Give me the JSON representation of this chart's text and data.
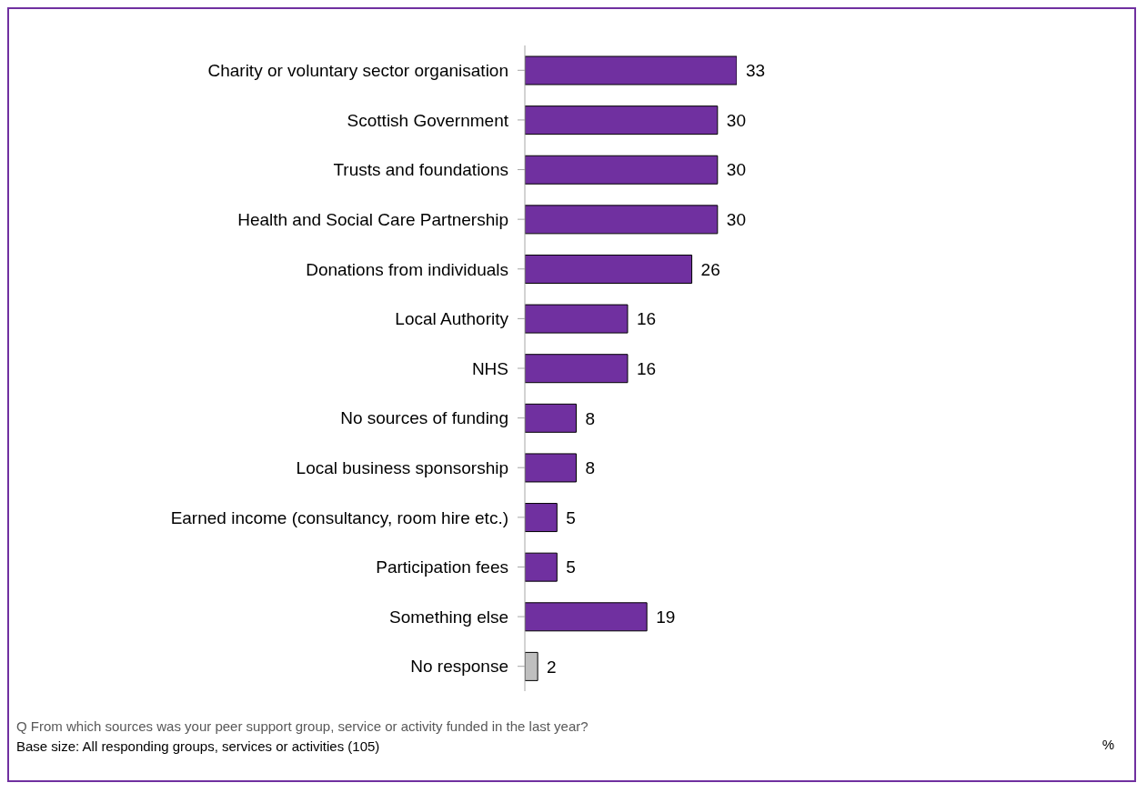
{
  "chart_data": {
    "type": "bar",
    "orientation": "horizontal",
    "categories": [
      "Charity or voluntary sector organisation",
      "Scottish Government",
      "Trusts and foundations",
      "Health and Social Care Partnership",
      "Donations from individuals",
      "Local Authority",
      "NHS",
      "No sources of funding",
      "Local business sponsorship",
      "Earned income (consultancy, room hire etc.)",
      "Participation fees",
      "Something else",
      "No response"
    ],
    "values": [
      33,
      30,
      30,
      30,
      26,
      16,
      16,
      8,
      8,
      5,
      5,
      19,
      2
    ],
    "colors": [
      "#7030a0",
      "#7030a0",
      "#7030a0",
      "#7030a0",
      "#7030a0",
      "#7030a0",
      "#7030a0",
      "#7030a0",
      "#7030a0",
      "#7030a0",
      "#7030a0",
      "#7030a0",
      "#bfbfbf"
    ],
    "data_labels": true,
    "grid": false,
    "legend": false,
    "annotations": [
      "Q From which sources was your peer support group, service or activity funded in the last year?",
      "Base size: All responding groups, services or activities (105)",
      "%"
    ]
  }
}
